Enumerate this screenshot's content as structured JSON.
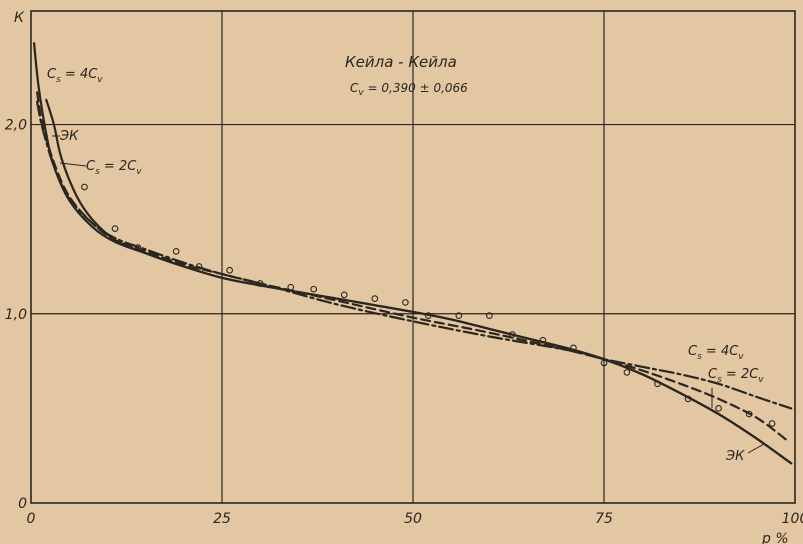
{
  "chart_data": {
    "type": "line",
    "title": "Кейла - Кейла",
    "subtitle": "C_v = 0,390 ± 0,066",
    "xlabel": "p %",
    "ylabel": "К",
    "xlim": [
      0,
      100
    ],
    "ylim": [
      0,
      2.6
    ],
    "grid": true,
    "x_ticks": [
      0,
      25,
      50,
      75,
      100
    ],
    "x_tick_labels": [
      "0",
      "25",
      "50",
      "75",
      "100"
    ],
    "y_ticks": [
      0,
      1.0,
      2.0
    ],
    "y_tick_labels": [
      "0",
      "1,0",
      "2,0"
    ],
    "series": [
      {
        "name": "C_s = 4C_v",
        "style": "solid",
        "x": [
          0.4,
          1,
          2,
          3,
          5,
          8,
          11,
          15,
          20,
          25,
          30,
          40,
          50,
          55,
          60,
          65,
          70,
          75,
          80,
          85,
          90,
          95,
          99.5
        ],
        "values": [
          2.43,
          2.2,
          1.95,
          1.78,
          1.6,
          1.46,
          1.38,
          1.32,
          1.25,
          1.19,
          1.15,
          1.08,
          1.01,
          0.97,
          0.92,
          0.87,
          0.82,
          0.76,
          0.68,
          0.58,
          0.47,
          0.34,
          0.21
        ]
      },
      {
        "name": "ЭК",
        "style": "solid",
        "x": [
          2,
          3,
          4,
          6,
          8,
          11,
          15,
          20,
          25,
          30,
          40,
          50,
          55,
          60,
          65,
          70,
          75,
          80,
          85,
          90,
          95,
          99.5
        ],
        "values": [
          2.13,
          2.0,
          1.82,
          1.62,
          1.5,
          1.39,
          1.32,
          1.25,
          1.19,
          1.15,
          1.08,
          1.01,
          0.97,
          0.92,
          0.87,
          0.82,
          0.76,
          0.68,
          0.58,
          0.47,
          0.34,
          0.21
        ]
      },
      {
        "name": "C_s = 2C_v",
        "style": "dashed",
        "x": [
          0.8,
          1.5,
          3,
          5,
          8,
          11,
          15,
          20,
          25,
          30,
          40,
          50,
          60,
          70,
          75,
          80,
          85,
          90,
          95,
          99
        ],
        "values": [
          2.17,
          2.0,
          1.8,
          1.62,
          1.48,
          1.39,
          1.33,
          1.26,
          1.21,
          1.16,
          1.07,
          0.98,
          0.9,
          0.81,
          0.76,
          0.7,
          0.63,
          0.55,
          0.45,
          0.33
        ]
      },
      {
        "name": "C_s = 4C_v",
        "style": "dashdot",
        "x": [
          0.8,
          1.5,
          3,
          5,
          8,
          11,
          15,
          20,
          25,
          30,
          40,
          50,
          60,
          70,
          75,
          80,
          85,
          90,
          95,
          99.5
        ],
        "values": [
          2.12,
          1.98,
          1.78,
          1.61,
          1.48,
          1.4,
          1.34,
          1.27,
          1.21,
          1.16,
          1.05,
          0.96,
          0.88,
          0.81,
          0.76,
          0.72,
          0.68,
          0.63,
          0.56,
          0.5
        ]
      }
    ],
    "observations": {
      "x": [
        7,
        11,
        14,
        19,
        22,
        26,
        30,
        34,
        37,
        41,
        45,
        49,
        52,
        56,
        60,
        63,
        67,
        71,
        75,
        78,
        82,
        86,
        90,
        94,
        97
      ],
      "values": [
        1.67,
        1.45,
        1.35,
        1.33,
        1.25,
        1.23,
        1.16,
        1.14,
        1.13,
        1.1,
        1.08,
        1.06,
        0.99,
        0.99,
        0.99,
        0.89,
        0.86,
        0.82,
        0.74,
        0.69,
        0.63,
        0.55,
        0.5,
        0.47,
        0.42
      ]
    },
    "annotations": [
      {
        "text": "C_s = 4C_v",
        "attach": "top-left"
      },
      {
        "text": "ЭК",
        "attach": "top-left"
      },
      {
        "text": "C_s = 2C_v",
        "attach": "top-left"
      },
      {
        "text": "C_s = 4C_v",
        "attach": "bottom-right"
      },
      {
        "text": "C_s = 2C_v",
        "attach": "bottom-right"
      },
      {
        "text": "ЭК",
        "attach": "bottom-right"
      }
    ]
  },
  "colors": {
    "background": "#e2c7a2",
    "ink": "#2b2620",
    "grid": "#2b2620"
  }
}
